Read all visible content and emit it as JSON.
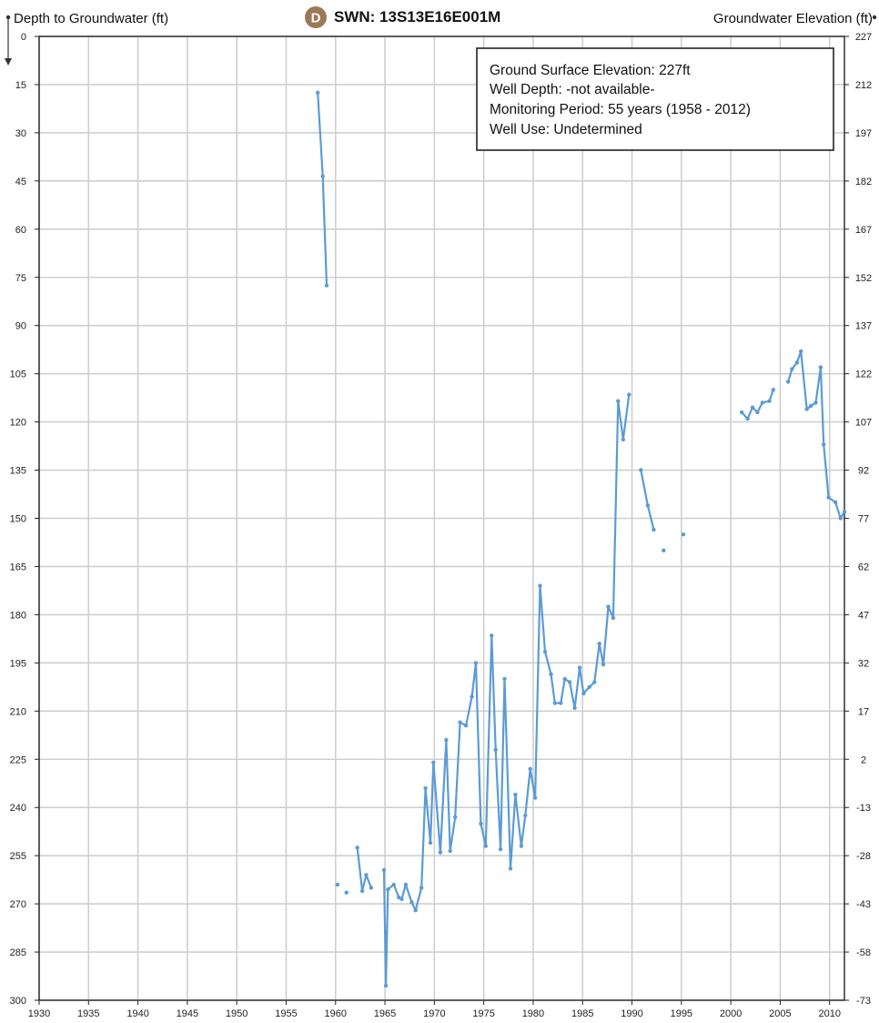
{
  "badge": {
    "letter": "D",
    "color": "#9a7a54"
  },
  "chart_data": {
    "type": "line",
    "title": "SWN: 13S13E16E001M",
    "ylabel_left": "Depth to Groundwater (ft)",
    "ylabel_right": "Groundwater Elevation (ft)",
    "xlim": [
      1930,
      2011.5
    ],
    "ylim_depth": [
      0,
      300
    ],
    "y_inverted": true,
    "ground_surface_elevation": 227,
    "x_ticks": [
      "1930",
      "1935",
      "1940",
      "1945",
      "1950",
      "1955",
      "1960",
      "1965",
      "1970",
      "1975",
      "1980",
      "1985",
      "1990",
      "1995",
      "2000",
      "2005",
      "2010"
    ],
    "y_ticks_left": [
      "0",
      "15",
      "30",
      "45",
      "60",
      "75",
      "90",
      "105",
      "120",
      "135",
      "150",
      "165",
      "180",
      "195",
      "210",
      "225",
      "240",
      "255",
      "270",
      "285",
      "300"
    ],
    "y_ticks_right": [
      "227",
      "212",
      "197",
      "182",
      "167",
      "152",
      "137",
      "122",
      "107",
      "92",
      "77",
      "62",
      "47",
      "32",
      "17",
      "2",
      "-13",
      "-28",
      "-43",
      "-58",
      "-73"
    ],
    "grid": true,
    "series_color": "#5b9bd5",
    "segments": [
      [
        [
          1958.2,
          17.5
        ],
        [
          1958.7,
          43.5
        ],
        [
          1959.1,
          77.5
        ]
      ],
      [
        [
          1960.2,
          264
        ]
      ],
      [
        [
          1961.1,
          266.5
        ]
      ],
      [
        [
          1962.2,
          252.5
        ],
        [
          1962.7,
          266
        ],
        [
          1963.1,
          261
        ],
        [
          1963.6,
          265
        ]
      ],
      [
        [
          1964.9,
          259.5
        ],
        [
          1965.1,
          295.5
        ],
        [
          1965.3,
          265.5
        ],
        [
          1965.9,
          264
        ],
        [
          1966.4,
          268
        ],
        [
          1966.7,
          268.5
        ],
        [
          1967.1,
          264
        ],
        [
          1967.7,
          269.5
        ],
        [
          1968.1,
          272
        ],
        [
          1968.7,
          265
        ],
        [
          1969.1,
          234
        ],
        [
          1969.6,
          251
        ],
        [
          1969.9,
          226
        ],
        [
          1970.6,
          254
        ],
        [
          1971.2,
          219
        ],
        [
          1971.6,
          253.5
        ],
        [
          1972.1,
          243
        ],
        [
          1972.6,
          213.5
        ],
        [
          1973.2,
          214.5
        ],
        [
          1973.8,
          205.5
        ],
        [
          1974.2,
          195
        ],
        [
          1974.7,
          245
        ],
        [
          1975.2,
          252
        ],
        [
          1975.8,
          186.5
        ],
        [
          1976.2,
          222
        ],
        [
          1976.7,
          253
        ],
        [
          1977.1,
          200
        ],
        [
          1977.7,
          259
        ],
        [
          1978.2,
          236
        ],
        [
          1978.8,
          252
        ],
        [
          1979.2,
          242.5
        ],
        [
          1979.7,
          228
        ],
        [
          1980.2,
          237
        ],
        [
          1980.7,
          171
        ],
        [
          1981.2,
          191.5
        ],
        [
          1981.8,
          198.5
        ],
        [
          1982.2,
          207.5
        ],
        [
          1982.8,
          207.5
        ],
        [
          1983.2,
          200
        ],
        [
          1983.7,
          201
        ],
        [
          1984.2,
          209
        ],
        [
          1984.7,
          196.5
        ],
        [
          1985.1,
          204.5
        ],
        [
          1985.7,
          202.5
        ],
        [
          1986.2,
          201
        ],
        [
          1986.7,
          189
        ],
        [
          1987.1,
          195.5
        ],
        [
          1987.6,
          177.5
        ],
        [
          1988.1,
          181
        ],
        [
          1988.6,
          113.5
        ],
        [
          1989.1,
          125.5
        ],
        [
          1989.7,
          111.5
        ]
      ],
      [
        [
          1990.9,
          135
        ],
        [
          1991.6,
          146
        ],
        [
          1992.2,
          153.5
        ]
      ],
      [
        [
          1993.2,
          160
        ]
      ],
      [
        [
          1995.2,
          155
        ]
      ],
      [
        [
          2001.1,
          117
        ],
        [
          2001.7,
          119
        ],
        [
          2002.2,
          115.5
        ],
        [
          2002.7,
          117
        ],
        [
          2003.2,
          114
        ],
        [
          2003.9,
          113.5
        ],
        [
          2004.3,
          110
        ]
      ],
      [
        [
          2005.8,
          107.5
        ],
        [
          2006.2,
          103.5
        ],
        [
          2006.7,
          101.5
        ],
        [
          2007.1,
          98
        ],
        [
          2007.7,
          116
        ],
        [
          2008.1,
          115
        ],
        [
          2008.6,
          114
        ],
        [
          2009.1,
          103
        ],
        [
          2009.4,
          127
        ],
        [
          2009.9,
          143.5
        ],
        [
          2010.6,
          145
        ],
        [
          2011.1,
          150
        ],
        [
          2011.5,
          148
        ]
      ]
    ],
    "info_box": {
      "lines": [
        "Ground Surface Elevation: 227ft",
        "Well Depth: -not available-",
        "Monitoring Period: 55 years (1958 - 2012)",
        "Well Use: Undetermined"
      ]
    }
  }
}
